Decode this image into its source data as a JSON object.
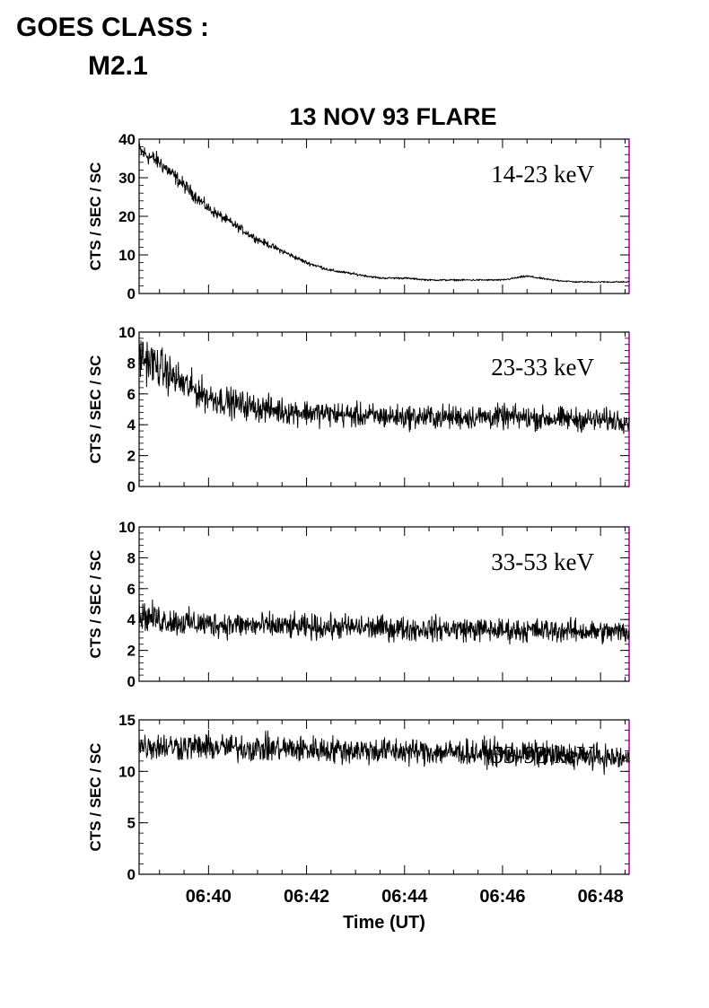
{
  "header": {
    "line1": "GOES CLASS :",
    "line2": "M2.1"
  },
  "chart_data": {
    "type": "line",
    "title": "13 NOV 93 FLARE",
    "xlabel": "Time (UT)",
    "x_range_minutes_utc": [
      "06:38:35",
      "06:48:35"
    ],
    "xticks": [
      "06:40",
      "06:42",
      "06:44",
      "06:46",
      "06:48"
    ],
    "panels": [
      {
        "band": "14-23 keV",
        "ylabel": "CTS / SEC / SC",
        "ylim": [
          0,
          40
        ],
        "yticks": [
          "0",
          "10",
          "20",
          "30",
          "40"
        ],
        "x": [
          "06:38:35",
          "06:39:00",
          "06:39:30",
          "06:40:00",
          "06:40:30",
          "06:41:00",
          "06:41:30",
          "06:42:00",
          "06:42:30",
          "06:43:00",
          "06:43:30",
          "06:44:00",
          "06:44:30",
          "06:45:00",
          "06:45:30",
          "06:46:00",
          "06:46:30",
          "06:47:00",
          "06:47:30",
          "06:48:00",
          "06:48:35"
        ],
        "y": [
          37,
          34,
          28,
          22,
          18,
          14,
          11,
          8,
          6,
          5,
          4,
          4,
          3.5,
          3.5,
          3.5,
          3.5,
          4.5,
          3.5,
          3,
          3,
          3
        ]
      },
      {
        "band": "23-33 keV",
        "ylabel": "CTS / SEC / SC",
        "ylim": [
          0,
          10
        ],
        "yticks": [
          "0",
          "2",
          "4",
          "6",
          "8",
          "10"
        ],
        "x": [
          "06:38:35",
          "06:39:00",
          "06:39:30",
          "06:40:00",
          "06:40:30",
          "06:41:00",
          "06:41:30",
          "06:42:00",
          "06:43:00",
          "06:44:00",
          "06:45:00",
          "06:46:00",
          "06:47:00",
          "06:48:00",
          "06:48:35"
        ],
        "y": [
          8.5,
          7.7,
          6.6,
          5.8,
          5.4,
          5.1,
          4.9,
          4.8,
          4.6,
          4.5,
          4.5,
          4.5,
          4.4,
          4.3,
          4.3
        ]
      },
      {
        "band": "33-53 keV",
        "ylabel": "CTS / SEC / SC",
        "ylim": [
          0,
          10
        ],
        "yticks": [
          "0",
          "2",
          "4",
          "6",
          "8",
          "10"
        ],
        "x": [
          "06:38:35",
          "06:39:00",
          "06:39:30",
          "06:40:00",
          "06:41:00",
          "06:42:00",
          "06:43:00",
          "06:44:00",
          "06:45:00",
          "06:46:00",
          "06:47:00",
          "06:48:00",
          "06:48:35"
        ],
        "y": [
          4.3,
          4.0,
          3.8,
          3.7,
          3.6,
          3.5,
          3.5,
          3.4,
          3.4,
          3.3,
          3.3,
          3.2,
          3.2
        ]
      },
      {
        "band": "53-93 keV",
        "ylabel": "CTS / SEC / SC",
        "ylim": [
          0,
          15
        ],
        "yticks": [
          "0",
          "5",
          "10",
          "15"
        ],
        "x": [
          "06:38:35",
          "06:39:30",
          "06:40:30",
          "06:41:30",
          "06:42:30",
          "06:43:30",
          "06:44:30",
          "06:45:30",
          "06:46:30",
          "06:47:30",
          "06:48:35"
        ],
        "y": [
          12.5,
          12.4,
          12.3,
          12.2,
          12.1,
          12.0,
          11.9,
          11.8,
          11.7,
          11.5,
          11.2
        ]
      }
    ],
    "colors": {
      "trace": "#000000",
      "axis": "#000000",
      "right_axis_accent": "#cc00cc"
    }
  }
}
